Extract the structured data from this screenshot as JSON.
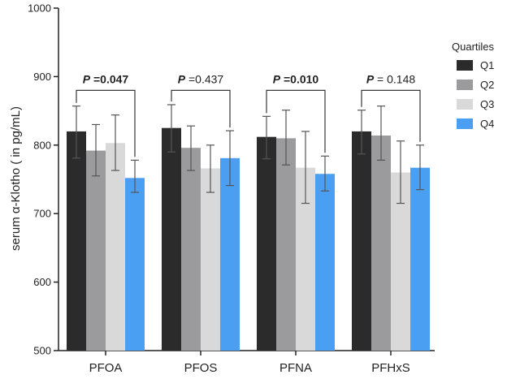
{
  "chart_data": {
    "type": "bar",
    "ylabel": "serum α-Klotho ( in pg/mL)",
    "xlabel": "",
    "ylim": [
      500,
      1000
    ],
    "yticks": [
      "500",
      "600",
      "700",
      "800",
      "900",
      "1000"
    ],
    "grid": false,
    "categories": [
      "PFOA",
      "PFOS",
      "PFNA",
      "PFHxS"
    ],
    "legend": {
      "title": "Quartiles",
      "position": "right"
    },
    "series": [
      {
        "name": "Q1",
        "color": "#2b2b2b",
        "values": [
          820,
          825,
          812,
          820
        ],
        "err_low": [
          781,
          790,
          780,
          787
        ],
        "err_high": [
          857,
          859,
          842,
          851
        ]
      },
      {
        "name": "Q2",
        "color": "#9b9b9e",
        "values": [
          792,
          796,
          810,
          814
        ],
        "err_low": [
          755,
          763,
          771,
          778
        ],
        "err_high": [
          830,
          828,
          851,
          857
        ]
      },
      {
        "name": "Q3",
        "color": "#d9d9d9",
        "values": [
          803,
          766,
          767,
          760
        ],
        "err_low": [
          763,
          731,
          715,
          715
        ],
        "err_high": [
          844,
          800,
          820,
          806
        ]
      },
      {
        "name": "Q4",
        "color": "#4a9ff2",
        "values": [
          752,
          781,
          758,
          767
        ],
        "err_low": [
          731,
          741,
          733,
          735
        ],
        "err_high": [
          778,
          821,
          784,
          800
        ]
      }
    ],
    "annotations": [
      {
        "category": "PFOA",
        "prefix": "P",
        "value": " =0.047",
        "bold": true
      },
      {
        "category": "PFOS",
        "prefix": "P",
        "value": " =0.437",
        "bold": false
      },
      {
        "category": "PFNA",
        "prefix": "P",
        "value": " =0.010",
        "bold": true
      },
      {
        "category": "PFHxS",
        "prefix": "P",
        "value": " = 0.148",
        "bold": false
      }
    ]
  }
}
